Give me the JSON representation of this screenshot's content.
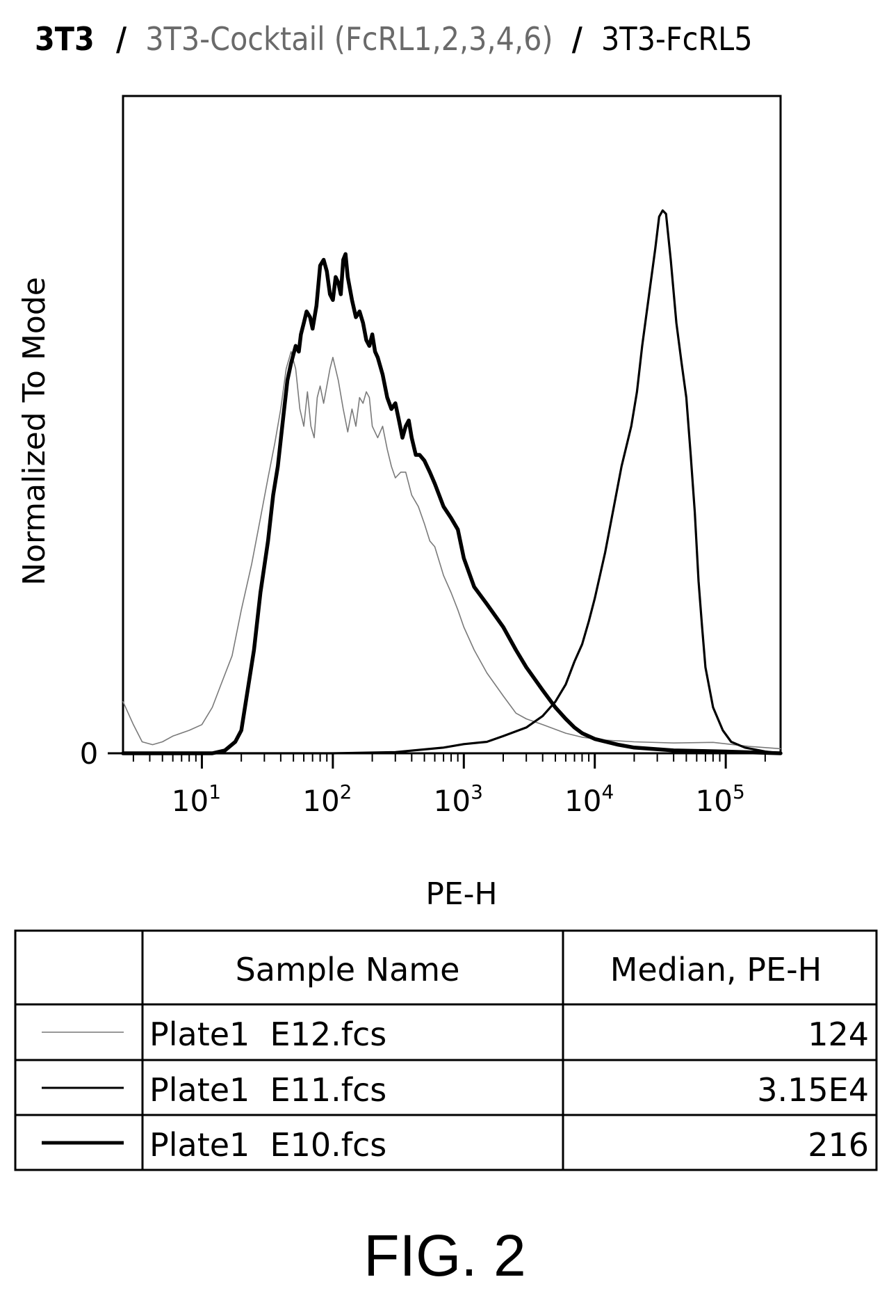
{
  "title": {
    "seg1": "3T3",
    "sep1": "/",
    "seg2": "3T3-Cocktail (FcRL1,2,3,4,6)",
    "sep2": "/",
    "seg3": "3T3-FcRL5"
  },
  "chart_data": {
    "type": "line",
    "xlabel": "PE-H",
    "ylabel": "Normalized To Mode",
    "x_scale": "log",
    "xlim": [
      2.5,
      262144
    ],
    "ylim": [
      0,
      100
    ],
    "x_ticks": [
      {
        "base": "10",
        "exp": "1",
        "value": 10
      },
      {
        "base": "10",
        "exp": "2",
        "value": 100
      },
      {
        "base": "10",
        "exp": "3",
        "value": 1000
      },
      {
        "base": "10",
        "exp": "4",
        "value": 10000
      },
      {
        "base": "10",
        "exp": "5",
        "value": 100000
      }
    ],
    "y_ticks": [
      {
        "label": "0",
        "value": 0
      }
    ],
    "series": [
      {
        "name": "Plate1 E12.fcs",
        "style": "thin",
        "points": [
          [
            2.5,
            9
          ],
          [
            3,
            5
          ],
          [
            3.5,
            2
          ],
          [
            4.2,
            1.5
          ],
          [
            5,
            2
          ],
          [
            6,
            3
          ],
          [
            8,
            4
          ],
          [
            10,
            5
          ],
          [
            12,
            8
          ],
          [
            14,
            12
          ],
          [
            17,
            17
          ],
          [
            20,
            25
          ],
          [
            24,
            33
          ],
          [
            28,
            41
          ],
          [
            32,
            48
          ],
          [
            36,
            54
          ],
          [
            40,
            60
          ],
          [
            44,
            67
          ],
          [
            48,
            70
          ],
          [
            52,
            67
          ],
          [
            56,
            60
          ],
          [
            60,
            57
          ],
          [
            64,
            63
          ],
          [
            68,
            57
          ],
          [
            72,
            55
          ],
          [
            76,
            62
          ],
          [
            80,
            64
          ],
          [
            85,
            61
          ],
          [
            90,
            64
          ],
          [
            95,
            67
          ],
          [
            100,
            69
          ],
          [
            110,
            65
          ],
          [
            120,
            60
          ],
          [
            130,
            56
          ],
          [
            140,
            60
          ],
          [
            150,
            57
          ],
          [
            160,
            62
          ],
          [
            170,
            61
          ],
          [
            180,
            63
          ],
          [
            190,
            62
          ],
          [
            200,
            57
          ],
          [
            220,
            55
          ],
          [
            240,
            57
          ],
          [
            260,
            53
          ],
          [
            280,
            50
          ],
          [
            300,
            48
          ],
          [
            330,
            49
          ],
          [
            360,
            49
          ],
          [
            400,
            45
          ],
          [
            450,
            43
          ],
          [
            500,
            40
          ],
          [
            550,
            37
          ],
          [
            600,
            36
          ],
          [
            700,
            31
          ],
          [
            800,
            28
          ],
          [
            900,
            25
          ],
          [
            1000,
            22
          ],
          [
            1200,
            18
          ],
          [
            1500,
            14
          ],
          [
            2000,
            10
          ],
          [
            2500,
            7
          ],
          [
            3000,
            6
          ],
          [
            4000,
            5
          ],
          [
            6000,
            3.5
          ],
          [
            8000,
            2.8
          ],
          [
            12000,
            2.3
          ],
          [
            20000,
            2
          ],
          [
            40000,
            1.8
          ],
          [
            80000,
            1.9
          ],
          [
            150000,
            1.2
          ],
          [
            262144,
            0.8
          ]
        ]
      },
      {
        "name": "Plate1 E11.fcs",
        "style": "medium",
        "points": [
          [
            2.5,
            0
          ],
          [
            100,
            0
          ],
          [
            300,
            0.2
          ],
          [
            700,
            1
          ],
          [
            1000,
            1.6
          ],
          [
            1500,
            2
          ],
          [
            2000,
            3
          ],
          [
            3000,
            4.5
          ],
          [
            4000,
            6.5
          ],
          [
            5000,
            9
          ],
          [
            6000,
            12
          ],
          [
            7000,
            16
          ],
          [
            8000,
            19
          ],
          [
            9000,
            23
          ],
          [
            10000,
            27
          ],
          [
            12000,
            35
          ],
          [
            14000,
            43
          ],
          [
            16000,
            50
          ],
          [
            19000,
            57
          ],
          [
            21000,
            63
          ],
          [
            23000,
            71
          ],
          [
            26000,
            80
          ],
          [
            29000,
            88
          ],
          [
            31000,
            93.5
          ],
          [
            33000,
            94.6
          ],
          [
            35000,
            94
          ],
          [
            38000,
            86
          ],
          [
            42000,
            75
          ],
          [
            46000,
            68
          ],
          [
            50000,
            62
          ],
          [
            54000,
            52
          ],
          [
            58000,
            42
          ],
          [
            62000,
            30
          ],
          [
            66000,
            22
          ],
          [
            70000,
            15
          ],
          [
            80000,
            8
          ],
          [
            95000,
            4
          ],
          [
            110000,
            2
          ],
          [
            140000,
            1
          ],
          [
            200000,
            0.3
          ],
          [
            262144,
            0
          ]
        ]
      },
      {
        "name": "Plate1 E10.fcs",
        "style": "thick",
        "points": [
          [
            2.5,
            0
          ],
          [
            12,
            0
          ],
          [
            15,
            0.5
          ],
          [
            18,
            2
          ],
          [
            20,
            4
          ],
          [
            22,
            10
          ],
          [
            25,
            18
          ],
          [
            28,
            28
          ],
          [
            32,
            37
          ],
          [
            35,
            45
          ],
          [
            38,
            50
          ],
          [
            42,
            59
          ],
          [
            45,
            65
          ],
          [
            48,
            68
          ],
          [
            52,
            71
          ],
          [
            55,
            70
          ],
          [
            57,
            73
          ],
          [
            60,
            75
          ],
          [
            63,
            77
          ],
          [
            67,
            76
          ],
          [
            70,
            74
          ],
          [
            75,
            78
          ],
          [
            80,
            85
          ],
          [
            85,
            86
          ],
          [
            90,
            84
          ],
          [
            95,
            80
          ],
          [
            100,
            79
          ],
          [
            105,
            83
          ],
          [
            110,
            82
          ],
          [
            115,
            80
          ],
          [
            120,
            86
          ],
          [
            125,
            87
          ],
          [
            130,
            83
          ],
          [
            140,
            79
          ],
          [
            150,
            76
          ],
          [
            160,
            77
          ],
          [
            170,
            75
          ],
          [
            180,
            72
          ],
          [
            190,
            71
          ],
          [
            200,
            73
          ],
          [
            210,
            70
          ],
          [
            220,
            69
          ],
          [
            240,
            66
          ],
          [
            260,
            62
          ],
          [
            280,
            60
          ],
          [
            300,
            61
          ],
          [
            320,
            58
          ],
          [
            340,
            55
          ],
          [
            360,
            57
          ],
          [
            380,
            58
          ],
          [
            400,
            55
          ],
          [
            430,
            52
          ],
          [
            460,
            52
          ],
          [
            500,
            51
          ],
          [
            550,
            49
          ],
          [
            600,
            47
          ],
          [
            700,
            43
          ],
          [
            800,
            41
          ],
          [
            900,
            39
          ],
          [
            1000,
            34
          ],
          [
            1200,
            29
          ],
          [
            1500,
            26
          ],
          [
            2000,
            22
          ],
          [
            2500,
            18
          ],
          [
            3000,
            15
          ],
          [
            4000,
            11
          ],
          [
            5000,
            8
          ],
          [
            6000,
            6
          ],
          [
            7000,
            4.5
          ],
          [
            8000,
            3.5
          ],
          [
            10000,
            2.5
          ],
          [
            15000,
            1.5
          ],
          [
            20000,
            1
          ],
          [
            40000,
            0.5
          ],
          [
            100000,
            0.3
          ],
          [
            262144,
            0
          ]
        ]
      }
    ]
  },
  "table": {
    "headers": [
      "",
      "Sample Name",
      "Median, PE-H"
    ],
    "rows": [
      {
        "line_style": "thin",
        "sample": "Plate1  E12.fcs",
        "median": "124"
      },
      {
        "line_style": "medium",
        "sample": "Plate1  E11.fcs",
        "median": "3.15E4"
      },
      {
        "line_style": "thick",
        "sample": "Plate1  E10.fcs",
        "median": "216"
      }
    ]
  },
  "figure_label": "FIG. 2"
}
